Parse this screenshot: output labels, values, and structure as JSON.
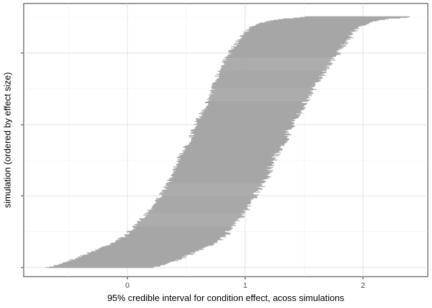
{
  "chart_data": {
    "type": "interval-range",
    "title": "",
    "xlabel": "95% credible interval for condition effect, acoss simulations",
    "ylabel": "simulation (ordered by effect size)",
    "xlim": [
      -0.88,
      2.55
    ],
    "x_ticks": [
      0,
      1,
      2
    ],
    "x_tick_labels": [
      "0",
      "1",
      "2"
    ],
    "grid": true,
    "n_simulations": 360,
    "interval_color": "#a6a6a6",
    "simulations_ordered": [
      {
        "rank_fraction": 0.0,
        "lower": -0.67,
        "upper": 0.23
      },
      {
        "rank_fraction": 0.03,
        "lower": -0.48,
        "upper": 0.42
      },
      {
        "rank_fraction": 0.06,
        "lower": -0.32,
        "upper": 0.57
      },
      {
        "rank_fraction": 0.09,
        "lower": -0.17,
        "upper": 0.71
      },
      {
        "rank_fraction": 0.12,
        "lower": -0.04,
        "upper": 0.82
      },
      {
        "rank_fraction": 0.16,
        "lower": 0.06,
        "upper": 0.89
      },
      {
        "rank_fraction": 0.2,
        "lower": 0.13,
        "upper": 0.96
      },
      {
        "rank_fraction": 0.25,
        "lower": 0.22,
        "upper": 1.03
      },
      {
        "rank_fraction": 0.3,
        "lower": 0.3,
        "upper": 1.11
      },
      {
        "rank_fraction": 0.35,
        "lower": 0.36,
        "upper": 1.18
      },
      {
        "rank_fraction": 0.4,
        "lower": 0.4,
        "upper": 1.21
      },
      {
        "rank_fraction": 0.45,
        "lower": 0.45,
        "upper": 1.27
      },
      {
        "rank_fraction": 0.5,
        "lower": 0.52,
        "upper": 1.34
      },
      {
        "rank_fraction": 0.55,
        "lower": 0.56,
        "upper": 1.38
      },
      {
        "rank_fraction": 0.6,
        "lower": 0.61,
        "upper": 1.45
      },
      {
        "rank_fraction": 0.65,
        "lower": 0.67,
        "upper": 1.5
      },
      {
        "rank_fraction": 0.7,
        "lower": 0.71,
        "upper": 1.57
      },
      {
        "rank_fraction": 0.75,
        "lower": 0.75,
        "upper": 1.63
      },
      {
        "rank_fraction": 0.8,
        "lower": 0.79,
        "upper": 1.7
      },
      {
        "rank_fraction": 0.85,
        "lower": 0.86,
        "upper": 1.78
      },
      {
        "rank_fraction": 0.9,
        "lower": 0.93,
        "upper": 1.86
      },
      {
        "rank_fraction": 0.94,
        "lower": 1.0,
        "upper": 1.92
      },
      {
        "rank_fraction": 0.97,
        "lower": 1.08,
        "upper": 2.01
      },
      {
        "rank_fraction": 0.99,
        "lower": 1.3,
        "upper": 2.2
      },
      {
        "rank_fraction": 1.0,
        "lower": 1.52,
        "upper": 2.42
      }
    ]
  }
}
